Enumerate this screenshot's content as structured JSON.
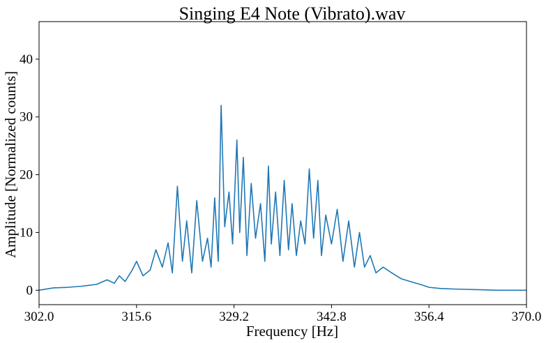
{
  "chart_data": {
    "type": "line",
    "title": "Singing E4 Note (Vibrato).wav",
    "xlabel": "Frequency [Hz]",
    "ylabel": "Amplitude [Normalized counts]",
    "xlim": [
      302.0,
      370.0
    ],
    "ylim": [
      -2.5,
      46.5
    ],
    "xticks": [
      302.0,
      315.6,
      329.2,
      342.8,
      356.4,
      370.0
    ],
    "xtick_labels": [
      "302.0",
      "315.6",
      "329.2",
      "342.8",
      "356.4",
      "370.0"
    ],
    "yticks": [
      0,
      10,
      20,
      30,
      40
    ],
    "ytick_labels": [
      "0",
      "10",
      "20",
      "30",
      "40"
    ],
    "grid": false,
    "legend": "none",
    "line_color": "#1f77b4",
    "series": [
      {
        "x": [
          302.0,
          304.0,
          306.0,
          308.0,
          310.0,
          311.5,
          312.5,
          313.2,
          314.0,
          315.0,
          315.6,
          316.5,
          317.5,
          318.3,
          319.2,
          320.0,
          320.6,
          321.3,
          322.0,
          322.6,
          323.3,
          324.0,
          324.8,
          325.5,
          326.0,
          326.5,
          327.0,
          327.4,
          327.9,
          328.5,
          329.0,
          329.6,
          330.0,
          330.5,
          331.0,
          331.6,
          332.2,
          332.9,
          333.5,
          334.0,
          334.4,
          335.0,
          335.6,
          336.2,
          336.8,
          337.3,
          337.9,
          338.5,
          339.1,
          339.7,
          340.3,
          340.9,
          341.4,
          342.0,
          342.8,
          343.6,
          344.4,
          345.2,
          346.0,
          346.7,
          347.4,
          348.2,
          349.0,
          350.0,
          351.2,
          352.5,
          353.8,
          355.2,
          356.4,
          358.0,
          360.0,
          363.0,
          366.0,
          370.0
        ],
        "y": [
          0.0,
          0.4,
          0.5,
          0.7,
          1.0,
          1.8,
          1.2,
          2.5,
          1.5,
          3.5,
          5.0,
          2.5,
          3.5,
          7.0,
          4.0,
          8.2,
          3.0,
          18.0,
          5.0,
          12.0,
          3.0,
          15.5,
          5.0,
          9.0,
          4.0,
          16.0,
          5.0,
          32.0,
          11.0,
          17.0,
          8.0,
          26.0,
          10.0,
          23.0,
          6.0,
          18.5,
          9.0,
          15.0,
          5.0,
          21.5,
          8.0,
          17.0,
          6.0,
          19.0,
          7.0,
          15.0,
          6.0,
          12.0,
          8.0,
          21.0,
          9.0,
          19.0,
          6.0,
          13.0,
          8.0,
          14.0,
          5.0,
          12.0,
          4.0,
          10.0,
          4.0,
          6.0,
          3.0,
          4.0,
          3.0,
          2.0,
          1.5,
          1.0,
          0.5,
          0.3,
          0.2,
          0.1,
          0.0,
          0.0
        ]
      }
    ]
  }
}
